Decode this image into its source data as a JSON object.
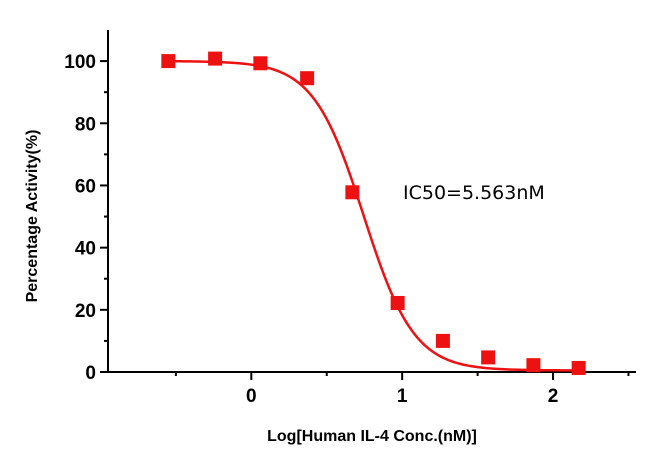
{
  "chart_data": {
    "type": "scatter",
    "xlabel": "Log[Human IL-4 Conc.(nM)]",
    "ylabel": "Percentage Activity(%)",
    "xlim": [
      -0.95,
      2.55
    ],
    "ylim": [
      0,
      110
    ],
    "x_ticks": [
      0,
      1,
      2
    ],
    "x_tick_labels": [
      "0",
      "1",
      "2"
    ],
    "y_ticks": [
      0,
      20,
      40,
      60,
      80,
      100
    ],
    "y_tick_labels": [
      "0",
      "20",
      "40",
      "60",
      "80",
      "100"
    ],
    "series": [
      {
        "marker": "square",
        "color": "#ee1111",
        "points": [
          {
            "x": -0.55,
            "y": 100
          },
          {
            "x": -0.24,
            "y": 100.8
          },
          {
            "x": 0.06,
            "y": 99.3
          },
          {
            "x": 0.37,
            "y": 94.5
          },
          {
            "x": 0.67,
            "y": 57.8
          },
          {
            "x": 0.97,
            "y": 22.2
          },
          {
            "x": 1.27,
            "y": 10
          },
          {
            "x": 1.57,
            "y": 4.7
          },
          {
            "x": 1.87,
            "y": 2.2
          },
          {
            "x": 2.17,
            "y": 1.3
          }
        ]
      }
    ],
    "fit_curve": {
      "model": "four-parameter logistic",
      "top": 100,
      "bottom": 0.5,
      "log_ic50": 0.745,
      "hill_slope": 2.6,
      "color": "#ee1111"
    },
    "annotation": "IC50=5.563nM",
    "grid": false
  }
}
